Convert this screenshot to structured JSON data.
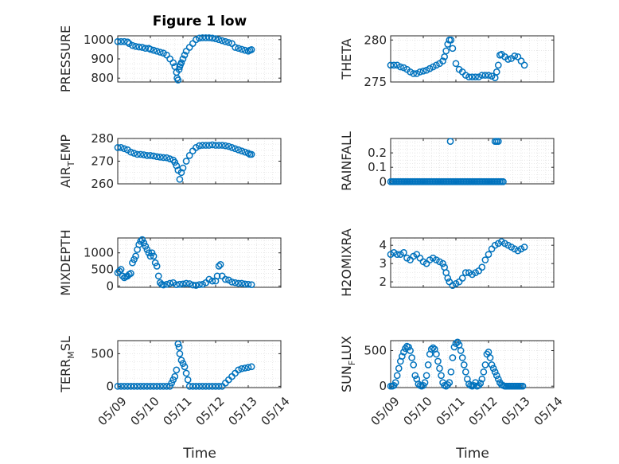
{
  "figure": {
    "title": "Figure 1 low"
  },
  "colors": {
    "marker": "#0072BD",
    "axes": "#262626",
    "grid": "#d9d9d9"
  },
  "chart_data": [
    {
      "type": "scatter",
      "id": "pressure",
      "ylabel_main": "PRESSURE",
      "ylabel_sub": "",
      "ylim": [
        780,
        1020
      ],
      "yticks": [
        800,
        900,
        1000
      ],
      "ytick_labels": [
        "800",
        "900",
        "1000"
      ],
      "xlim": [
        0,
        5
      ],
      "x": [
        0.0,
        0.1,
        0.2,
        0.3,
        0.35,
        0.45,
        0.55,
        0.65,
        0.75,
        0.85,
        0.95,
        1.0,
        1.1,
        1.2,
        1.3,
        1.4,
        1.5,
        1.6,
        1.7,
        1.75,
        1.8,
        1.82,
        1.85,
        1.88,
        1.9,
        1.92,
        1.95,
        2.0,
        2.05,
        2.1,
        2.2,
        2.3,
        2.4,
        2.5,
        2.6,
        2.7,
        2.8,
        2.9,
        3.0,
        3.1,
        3.2,
        3.3,
        3.4,
        3.5,
        3.6,
        3.7,
        3.8,
        3.9,
        4.0,
        4.05,
        4.1
      ],
      "y": [
        990,
        990,
        990,
        988,
        980,
        970,
        965,
        962,
        960,
        955,
        955,
        950,
        945,
        940,
        935,
        930,
        920,
        900,
        880,
        860,
        830,
        800,
        790,
        845,
        860,
        870,
        880,
        900,
        920,
        940,
        960,
        980,
        1000,
        1008,
        1010,
        1010,
        1010,
        1008,
        1005,
        1000,
        995,
        990,
        985,
        980,
        960,
        955,
        950,
        945,
        940,
        945,
        948
      ]
    },
    {
      "type": "scatter",
      "id": "theta",
      "ylabel_main": "THETA",
      "ylabel_sub": "",
      "ylim": [
        275,
        280.5
      ],
      "yticks": [
        275,
        280
      ],
      "ytick_labels": [
        "275",
        "280"
      ],
      "xlim": [
        0,
        5
      ],
      "x": [
        0.0,
        0.1,
        0.2,
        0.3,
        0.4,
        0.5,
        0.6,
        0.7,
        0.8,
        0.9,
        1.0,
        1.1,
        1.2,
        1.3,
        1.4,
        1.5,
        1.6,
        1.65,
        1.7,
        1.75,
        1.8,
        1.85,
        1.9,
        2.0,
        2.1,
        2.2,
        2.3,
        2.4,
        2.5,
        2.6,
        2.7,
        2.8,
        2.9,
        3.0,
        3.1,
        3.2,
        3.25,
        3.3,
        3.35,
        3.4,
        3.5,
        3.6,
        3.7,
        3.8,
        3.9,
        4.0,
        4.1
      ],
      "y": [
        277,
        277,
        277,
        276.8,
        276.7,
        276.5,
        276.2,
        276,
        276,
        276.2,
        276.3,
        276.4,
        276.6,
        276.8,
        277,
        277.2,
        277.5,
        278,
        278.7,
        279.5,
        280,
        280,
        279,
        277.2,
        276.5,
        276.2,
        275.8,
        275.6,
        275.6,
        275.6,
        275.6,
        275.8,
        275.8,
        275.8,
        275.7,
        275.5,
        276.2,
        277,
        278.2,
        278.3,
        278,
        277.7,
        277.8,
        278.1,
        278,
        277.5,
        277
      ]
    },
    {
      "type": "scatter",
      "id": "airtemp",
      "ylabel_main": "AIR",
      "ylabel_sub": "T",
      "ylabel_tail": "EMP",
      "ylim": [
        260,
        280
      ],
      "yticks": [
        260,
        270,
        280
      ],
      "ytick_labels": [
        "260",
        "270",
        "280"
      ],
      "xlim": [
        0,
        5
      ],
      "x": [
        0.0,
        0.1,
        0.2,
        0.3,
        0.4,
        0.5,
        0.6,
        0.7,
        0.8,
        0.9,
        1.0,
        1.1,
        1.2,
        1.3,
        1.4,
        1.5,
        1.6,
        1.7,
        1.75,
        1.8,
        1.85,
        1.9,
        1.95,
        2.0,
        2.1,
        2.2,
        2.3,
        2.4,
        2.5,
        2.6,
        2.7,
        2.8,
        2.9,
        3.0,
        3.1,
        3.2,
        3.3,
        3.4,
        3.5,
        3.6,
        3.7,
        3.8,
        3.9,
        4.0,
        4.05,
        4.1
      ],
      "y": [
        276,
        276,
        275.5,
        275,
        274,
        273.5,
        273,
        273,
        272.8,
        272.5,
        272.5,
        272.3,
        272,
        271.8,
        271.6,
        271.5,
        271,
        270.5,
        269.5,
        268,
        266,
        262,
        265,
        267,
        270,
        272.5,
        274.5,
        276,
        276.8,
        277,
        277,
        277,
        277.2,
        277,
        277,
        277,
        276.8,
        276.5,
        276,
        275.5,
        275,
        274.5,
        274,
        273.5,
        273,
        273
      ]
    },
    {
      "type": "scatter",
      "id": "rainfall",
      "ylabel_main": "RAINFALL",
      "ylabel_sub": "",
      "ylim": [
        -0.015,
        0.3
      ],
      "yticks": [
        0,
        0.1,
        0.2
      ],
      "ytick_labels": [
        "0",
        "0.1",
        "0.2"
      ],
      "xlim": [
        0,
        5
      ],
      "x": [
        0.0,
        0.05,
        0.1,
        0.15,
        0.2,
        0.25,
        0.3,
        0.35,
        0.4,
        0.45,
        0.5,
        0.55,
        0.6,
        0.65,
        0.7,
        0.75,
        0.8,
        0.85,
        0.9,
        0.95,
        1.0,
        1.05,
        1.1,
        1.15,
        1.2,
        1.25,
        1.3,
        1.35,
        1.4,
        1.45,
        1.5,
        1.55,
        1.6,
        1.65,
        1.7,
        1.75,
        1.8,
        1.85,
        1.9,
        1.95,
        2.0,
        2.05,
        2.1,
        2.15,
        2.2,
        2.25,
        2.3,
        2.35,
        2.4,
        2.45,
        2.5,
        2.55,
        2.6,
        2.65,
        2.7,
        2.75,
        2.8,
        2.85,
        2.9,
        2.95,
        3.0,
        3.05,
        3.1,
        3.15,
        3.2,
        3.25,
        3.3,
        3.35,
        3.4,
        3.45,
        1.83,
        3.2,
        3.25,
        3.3
      ],
      "y": [
        0,
        0,
        0,
        0,
        0,
        0,
        0,
        0,
        0,
        0,
        0,
        0,
        0,
        0,
        0,
        0,
        0,
        0,
        0,
        0,
        0,
        0,
        0,
        0,
        0,
        0,
        0,
        0,
        0,
        0,
        0,
        0,
        0,
        0,
        0,
        0,
        0,
        0,
        0,
        0,
        0,
        0,
        0,
        0,
        0,
        0,
        0,
        0,
        0,
        0,
        0,
        0,
        0,
        0,
        0,
        0,
        0,
        0,
        0,
        0,
        0,
        0,
        0,
        0,
        0,
        0,
        0,
        0,
        0,
        0,
        0.28,
        0.28,
        0.28,
        0.28
      ]
    },
    {
      "type": "scatter",
      "id": "mixdepth",
      "ylabel_main": "MIXDEPTH",
      "ylabel_sub": "",
      "ylim": [
        -40,
        1450
      ],
      "yticks": [
        0,
        500,
        1000
      ],
      "ytick_labels": [
        "0",
        "500",
        "1000"
      ],
      "xlim": [
        0,
        5
      ],
      "x": [
        0.0,
        0.05,
        0.1,
        0.15,
        0.2,
        0.25,
        0.3,
        0.35,
        0.4,
        0.45,
        0.5,
        0.55,
        0.6,
        0.65,
        0.7,
        0.75,
        0.8,
        0.85,
        0.9,
        0.95,
        1.0,
        1.05,
        1.1,
        1.15,
        1.2,
        1.25,
        1.3,
        1.35,
        1.4,
        1.5,
        1.6,
        1.7,
        1.8,
        1.9,
        2.0,
        2.1,
        2.2,
        2.3,
        2.4,
        2.5,
        2.6,
        2.7,
        2.8,
        2.9,
        3.0,
        3.05,
        3.1,
        3.15,
        3.2,
        3.3,
        3.4,
        3.5,
        3.6,
        3.7,
        3.8,
        3.9,
        4.0,
        4.1
      ],
      "y": [
        400,
        450,
        500,
        300,
        250,
        280,
        300,
        350,
        380,
        700,
        800,
        900,
        1100,
        1250,
        1350,
        1400,
        1300,
        1200,
        1100,
        1000,
        900,
        1000,
        900,
        700,
        600,
        300,
        100,
        50,
        30,
        50,
        80,
        100,
        40,
        50,
        60,
        80,
        70,
        30,
        20,
        40,
        50,
        100,
        200,
        150,
        150,
        300,
        600,
        650,
        300,
        200,
        180,
        120,
        100,
        80,
        80,
        60,
        50,
        40
      ]
    },
    {
      "type": "scatter",
      "id": "h2omixra",
      "ylabel_main": "H2OMIXRA",
      "ylabel_sub": "",
      "ylim": [
        1.7,
        4.4
      ],
      "yticks": [
        2,
        3,
        4
      ],
      "ytick_labels": [
        "2",
        "3",
        "4"
      ],
      "xlim": [
        0,
        5
      ],
      "x": [
        0.0,
        0.1,
        0.2,
        0.3,
        0.4,
        0.5,
        0.6,
        0.7,
        0.8,
        0.9,
        1.0,
        1.1,
        1.2,
        1.3,
        1.4,
        1.5,
        1.6,
        1.65,
        1.7,
        1.75,
        1.8,
        1.9,
        2.0,
        2.1,
        2.2,
        2.3,
        2.4,
        2.5,
        2.6,
        2.7,
        2.8,
        2.9,
        3.0,
        3.1,
        3.2,
        3.3,
        3.4,
        3.5,
        3.6,
        3.7,
        3.8,
        3.9,
        4.0,
        4.1
      ],
      "y": [
        3.5,
        3.6,
        3.5,
        3.5,
        3.6,
        3.3,
        3.2,
        3.4,
        3.5,
        3.3,
        3.1,
        3.0,
        3.2,
        3.3,
        3.2,
        3.1,
        3.0,
        2.8,
        2.5,
        2.2,
        2.0,
        1.8,
        1.9,
        2.0,
        2.2,
        2.5,
        2.5,
        2.4,
        2.5,
        2.6,
        2.8,
        3.2,
        3.5,
        3.8,
        4.0,
        4.1,
        4.2,
        4.1,
        4.0,
        3.9,
        3.8,
        3.7,
        3.8,
        3.9
      ]
    },
    {
      "type": "scatter",
      "id": "terrmsl",
      "ylabel_main": "TERR",
      "ylabel_sub": "M",
      "ylabel_tail": "SL",
      "ylim": [
        -20,
        700
      ],
      "yticks": [
        0,
        500
      ],
      "ytick_labels": [
        "0",
        "500"
      ],
      "xlim": [
        0,
        5
      ],
      "x": [
        0.0,
        0.1,
        0.2,
        0.3,
        0.4,
        0.5,
        0.6,
        0.7,
        0.8,
        0.9,
        1.0,
        1.1,
        1.2,
        1.3,
        1.4,
        1.5,
        1.6,
        1.65,
        1.7,
        1.75,
        1.8,
        1.85,
        1.88,
        1.9,
        1.95,
        2.0,
        2.05,
        2.1,
        2.15,
        2.2,
        2.3,
        2.4,
        2.5,
        2.6,
        2.7,
        2.8,
        2.9,
        3.0,
        3.1,
        3.2,
        3.3,
        3.4,
        3.5,
        3.6,
        3.7,
        3.8,
        3.9,
        4.0,
        4.1
      ],
      "y": [
        0,
        0,
        0,
        0,
        0,
        0,
        0,
        0,
        0,
        0,
        0,
        0,
        0,
        0,
        0,
        0,
        0,
        50,
        100,
        150,
        250,
        650,
        600,
        500,
        400,
        350,
        300,
        200,
        100,
        0,
        0,
        0,
        0,
        0,
        0,
        0,
        0,
        0,
        0,
        0,
        50,
        100,
        150,
        200,
        250,
        270,
        280,
        290,
        300
      ]
    },
    {
      "type": "scatter",
      "id": "sunflux",
      "ylabel_main": "SUN",
      "ylabel_sub": "F",
      "ylabel_tail": "LUX",
      "ylim": [
        -20,
        640
      ],
      "yticks": [
        0,
        500
      ],
      "ytick_labels": [
        "0",
        "500"
      ],
      "xlim": [
        0,
        5
      ],
      "x": [
        0.0,
        0.05,
        0.1,
        0.15,
        0.2,
        0.25,
        0.3,
        0.35,
        0.4,
        0.45,
        0.5,
        0.55,
        0.6,
        0.65,
        0.7,
        0.75,
        0.8,
        0.85,
        0.9,
        0.95,
        1.0,
        1.05,
        1.1,
        1.15,
        1.2,
        1.25,
        1.3,
        1.35,
        1.4,
        1.45,
        1.5,
        1.55,
        1.6,
        1.65,
        1.7,
        1.75,
        1.8,
        1.85,
        1.9,
        1.95,
        2.0,
        2.05,
        2.1,
        2.15,
        2.2,
        2.25,
        2.3,
        2.35,
        2.4,
        2.45,
        2.5,
        2.55,
        2.6,
        2.65,
        2.7,
        2.75,
        2.8,
        2.85,
        2.9,
        2.95,
        3.0,
        3.05,
        3.1,
        3.15,
        3.2,
        3.25,
        3.3,
        3.35,
        3.4,
        3.45,
        3.5,
        3.55,
        3.6,
        3.65,
        3.7,
        3.75,
        3.8,
        3.85,
        3.9,
        3.95,
        4.0,
        4.05
      ],
      "y": [
        0,
        0,
        10,
        50,
        150,
        250,
        350,
        420,
        480,
        530,
        560,
        550,
        500,
        400,
        300,
        150,
        100,
        30,
        10,
        0,
        10,
        50,
        150,
        300,
        450,
        520,
        540,
        520,
        450,
        350,
        250,
        150,
        50,
        10,
        0,
        20,
        50,
        200,
        400,
        550,
        600,
        620,
        580,
        500,
        400,
        300,
        200,
        100,
        30,
        10,
        0,
        10,
        50,
        0,
        10,
        40,
        100,
        200,
        300,
        450,
        480,
        400,
        300,
        250,
        200,
        150,
        100,
        50,
        20,
        10,
        0,
        0,
        0,
        0,
        0,
        0,
        0,
        0,
        0,
        0,
        0,
        0
      ]
    }
  ],
  "xaxis": {
    "tick_labels": [
      "05/09",
      "05/10",
      "05/11",
      "05/12",
      "05/13",
      "05/14"
    ],
    "label": "Time"
  }
}
